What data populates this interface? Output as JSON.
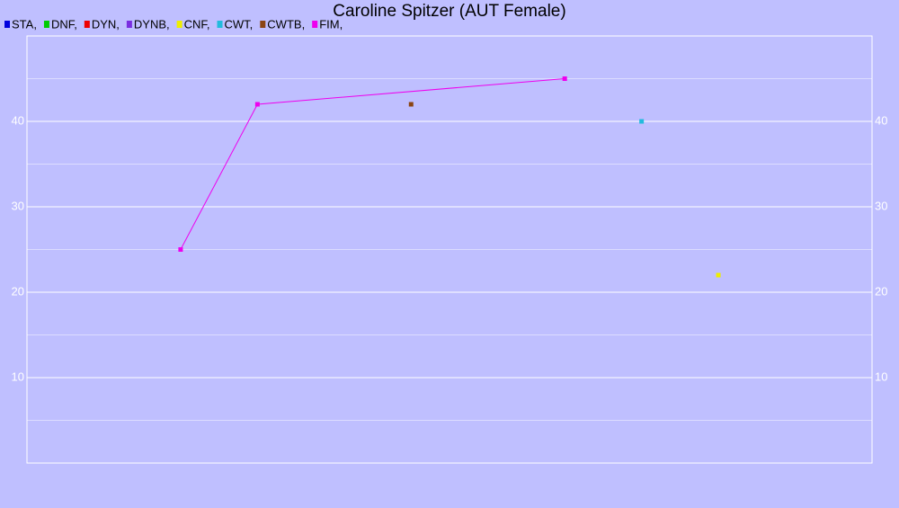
{
  "chart_data": {
    "type": "line",
    "title": "Caroline Spitzer (AUT Female)",
    "xlim": [
      0,
      11
    ],
    "ylim": [
      0,
      50
    ],
    "yticks": [
      10,
      20,
      30,
      40
    ],
    "minor_yticks": [
      5,
      15,
      25,
      35,
      45
    ],
    "grid": true,
    "series": [
      {
        "name": "STA,",
        "color": "#0000dd",
        "x": [],
        "values": []
      },
      {
        "name": "DNF,",
        "color": "#00cc00",
        "x": [],
        "values": []
      },
      {
        "name": "DYN,",
        "color": "#ee0000",
        "x": [],
        "values": []
      },
      {
        "name": "DYNB,",
        "color": "#7a2ee0",
        "x": [],
        "values": []
      },
      {
        "name": "CNF,",
        "color": "#eeee00",
        "x": [
          9
        ],
        "values": [
          22
        ]
      },
      {
        "name": "CWT,",
        "color": "#22bbdd",
        "x": [
          8
        ],
        "values": [
          40
        ]
      },
      {
        "name": "CWTB,",
        "color": "#8b4513",
        "x": [
          5
        ],
        "values": [
          42
        ]
      },
      {
        "name": "FIM,",
        "color": "#ee00ee",
        "x": [
          2,
          3,
          7
        ],
        "values": [
          25,
          42,
          45
        ]
      }
    ]
  }
}
